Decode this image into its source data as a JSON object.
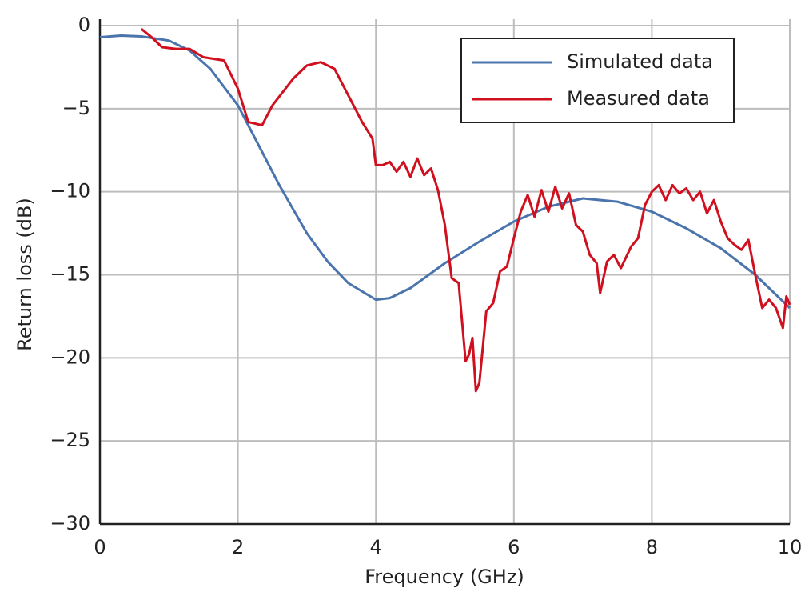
{
  "chart_data": {
    "type": "line",
    "xlabel": "Frequency (GHz)",
    "ylabel": "Return loss (dB)",
    "xlim": [
      0,
      10
    ],
    "ylim": [
      -30,
      0
    ],
    "xticks": [
      0,
      2,
      4,
      6,
      8,
      10
    ],
    "yticks": [
      {
        "value": -30,
        "label": "−30"
      },
      {
        "value": -25,
        "label": "−25"
      },
      {
        "value": -20,
        "label": "−20"
      },
      {
        "value": -15,
        "label": "−15"
      },
      {
        "value": -10,
        "label": "−10"
      },
      {
        "value": -5,
        "label": "−5"
      },
      0
    ],
    "grid": true,
    "legend": "upper right",
    "series": [
      {
        "name": "Simulated data",
        "color": "#4a74ad",
        "x": [
          0,
          0.3,
          0.6,
          1.0,
          1.3,
          1.6,
          2.0,
          2.3,
          2.6,
          3.0,
          3.3,
          3.6,
          4.0,
          4.2,
          4.5,
          5.0,
          5.5,
          6.0,
          6.5,
          7.0,
          7.5,
          8.0,
          8.5,
          9.0,
          9.5,
          10.0
        ],
        "values": [
          -0.7,
          -0.6,
          -0.65,
          -0.9,
          -1.5,
          -2.6,
          -4.8,
          -7.2,
          -9.6,
          -12.5,
          -14.2,
          -15.5,
          -16.5,
          -16.4,
          -15.8,
          -14.3,
          -13.0,
          -11.8,
          -10.9,
          -10.4,
          -10.6,
          -11.2,
          -12.2,
          -13.4,
          -15.0,
          -17.0
        ]
      },
      {
        "name": "Measured data",
        "color": "#d0101e",
        "x": [
          0.6,
          0.75,
          0.9,
          1.1,
          1.3,
          1.5,
          1.8,
          2.0,
          2.15,
          2.35,
          2.5,
          2.8,
          3.0,
          3.2,
          3.4,
          3.6,
          3.8,
          3.95,
          4.0,
          4.1,
          4.2,
          4.3,
          4.4,
          4.5,
          4.6,
          4.7,
          4.8,
          4.9,
          5.0,
          5.1,
          5.2,
          5.3,
          5.35,
          5.4,
          5.45,
          5.5,
          5.6,
          5.7,
          5.8,
          5.9,
          6.0,
          6.1,
          6.2,
          6.3,
          6.4,
          6.5,
          6.6,
          6.7,
          6.8,
          6.9,
          7.0,
          7.1,
          7.2,
          7.25,
          7.35,
          7.45,
          7.55,
          7.7,
          7.8,
          7.9,
          8.0,
          8.1,
          8.2,
          8.3,
          8.4,
          8.5,
          8.6,
          8.7,
          8.8,
          8.9,
          9.0,
          9.1,
          9.2,
          9.3,
          9.4,
          9.5,
          9.6,
          9.7,
          9.8,
          9.9,
          9.95,
          10.0
        ],
        "values": [
          -0.2,
          -0.7,
          -1.3,
          -1.4,
          -1.4,
          -1.9,
          -2.1,
          -3.8,
          -5.8,
          -6.0,
          -4.8,
          -3.2,
          -2.4,
          -2.2,
          -2.6,
          -4.2,
          -5.8,
          -6.8,
          -8.4,
          -8.4,
          -8.2,
          -8.8,
          -8.2,
          -9.1,
          -8.0,
          -9.0,
          -8.6,
          -9.9,
          -12.0,
          -15.2,
          -15.5,
          -20.2,
          -19.8,
          -18.8,
          -22.0,
          -21.5,
          -17.2,
          -16.7,
          -14.8,
          -14.5,
          -12.8,
          -11.2,
          -10.2,
          -11.5,
          -9.9,
          -11.2,
          -9.7,
          -11.0,
          -10.1,
          -12.0,
          -12.4,
          -13.8,
          -14.3,
          -16.1,
          -14.2,
          -13.8,
          -14.6,
          -13.3,
          -12.8,
          -10.8,
          -10.0,
          -9.6,
          -10.5,
          -9.6,
          -10.1,
          -9.8,
          -10.5,
          -10.0,
          -11.3,
          -10.5,
          -11.8,
          -12.8,
          -13.2,
          -13.5,
          -12.9,
          -15.0,
          -17.0,
          -16.5,
          -17.0,
          -18.2,
          -16.3,
          -16.8
        ]
      }
    ]
  }
}
